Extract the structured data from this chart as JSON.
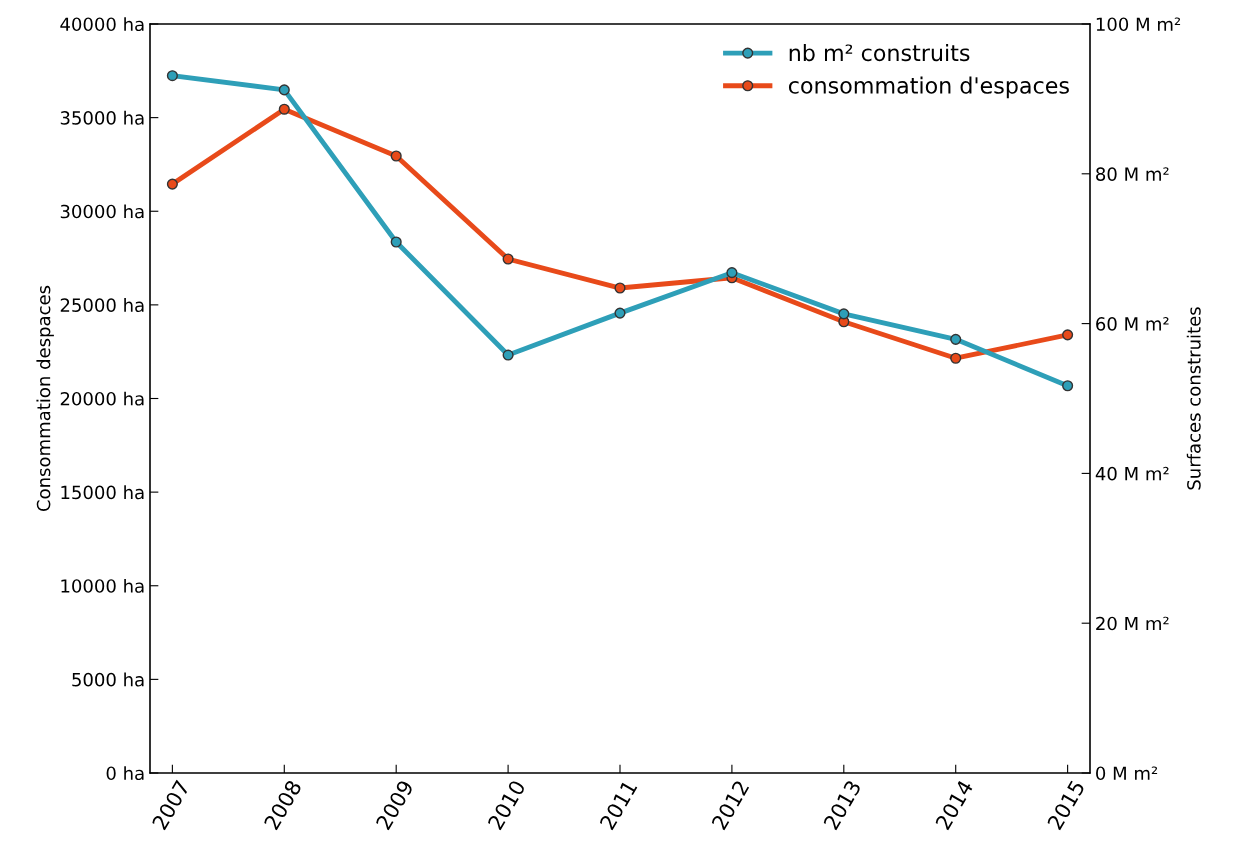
{
  "chart_data": {
    "type": "line",
    "ylabel": "Consommation despaces",
    "y2label": "Surfaces construites",
    "x": [
      2007,
      2008,
      2009,
      2010,
      2011,
      2012,
      2013,
      2014,
      2015
    ],
    "xlim": [
      2006.8,
      2015.2
    ],
    "xticks": [
      2007,
      2008,
      2009,
      2010,
      2011,
      2012,
      2013,
      2014,
      2015
    ],
    "ylim": [
      0,
      40000
    ],
    "yticks": [
      {
        "value": 0,
        "label": "0 ha"
      },
      {
        "value": 5000,
        "label": "5000 ha"
      },
      {
        "value": 10000,
        "label": "10000 ha"
      },
      {
        "value": 15000,
        "label": "15000 ha"
      },
      {
        "value": 20000,
        "label": "20000 ha"
      },
      {
        "value": 25000,
        "label": "25000 ha"
      },
      {
        "value": 30000,
        "label": "30000 ha"
      },
      {
        "value": 35000,
        "label": "35000 ha"
      },
      {
        "value": 40000,
        "label": "40000 ha"
      }
    ],
    "y2lim": [
      0,
      100
    ],
    "y2ticks": [
      {
        "value": 0,
        "label": "0 M m²"
      },
      {
        "value": 20,
        "label": "20 M m²"
      },
      {
        "value": 40,
        "label": "40 M m²"
      },
      {
        "value": 60,
        "label": "60 M m²"
      },
      {
        "value": 80,
        "label": "80 M m²"
      },
      {
        "value": 100,
        "label": "100 M m²"
      }
    ],
    "series": [
      {
        "name": "nb m² construits",
        "color": "#2e9fb8",
        "axis": "y2",
        "values": [
          93.1,
          91.2,
          70.9,
          55.8,
          61.4,
          66.8,
          61.3,
          57.9,
          51.7
        ]
      },
      {
        "name": "consommation d'espaces",
        "color": "#e84a1a",
        "values": [
          31450,
          35450,
          32950,
          27450,
          25900,
          26450,
          24100,
          22150,
          23400
        ]
      }
    ],
    "marker": "circle",
    "line_style": "solid",
    "legend": "top right",
    "grid": false
  }
}
